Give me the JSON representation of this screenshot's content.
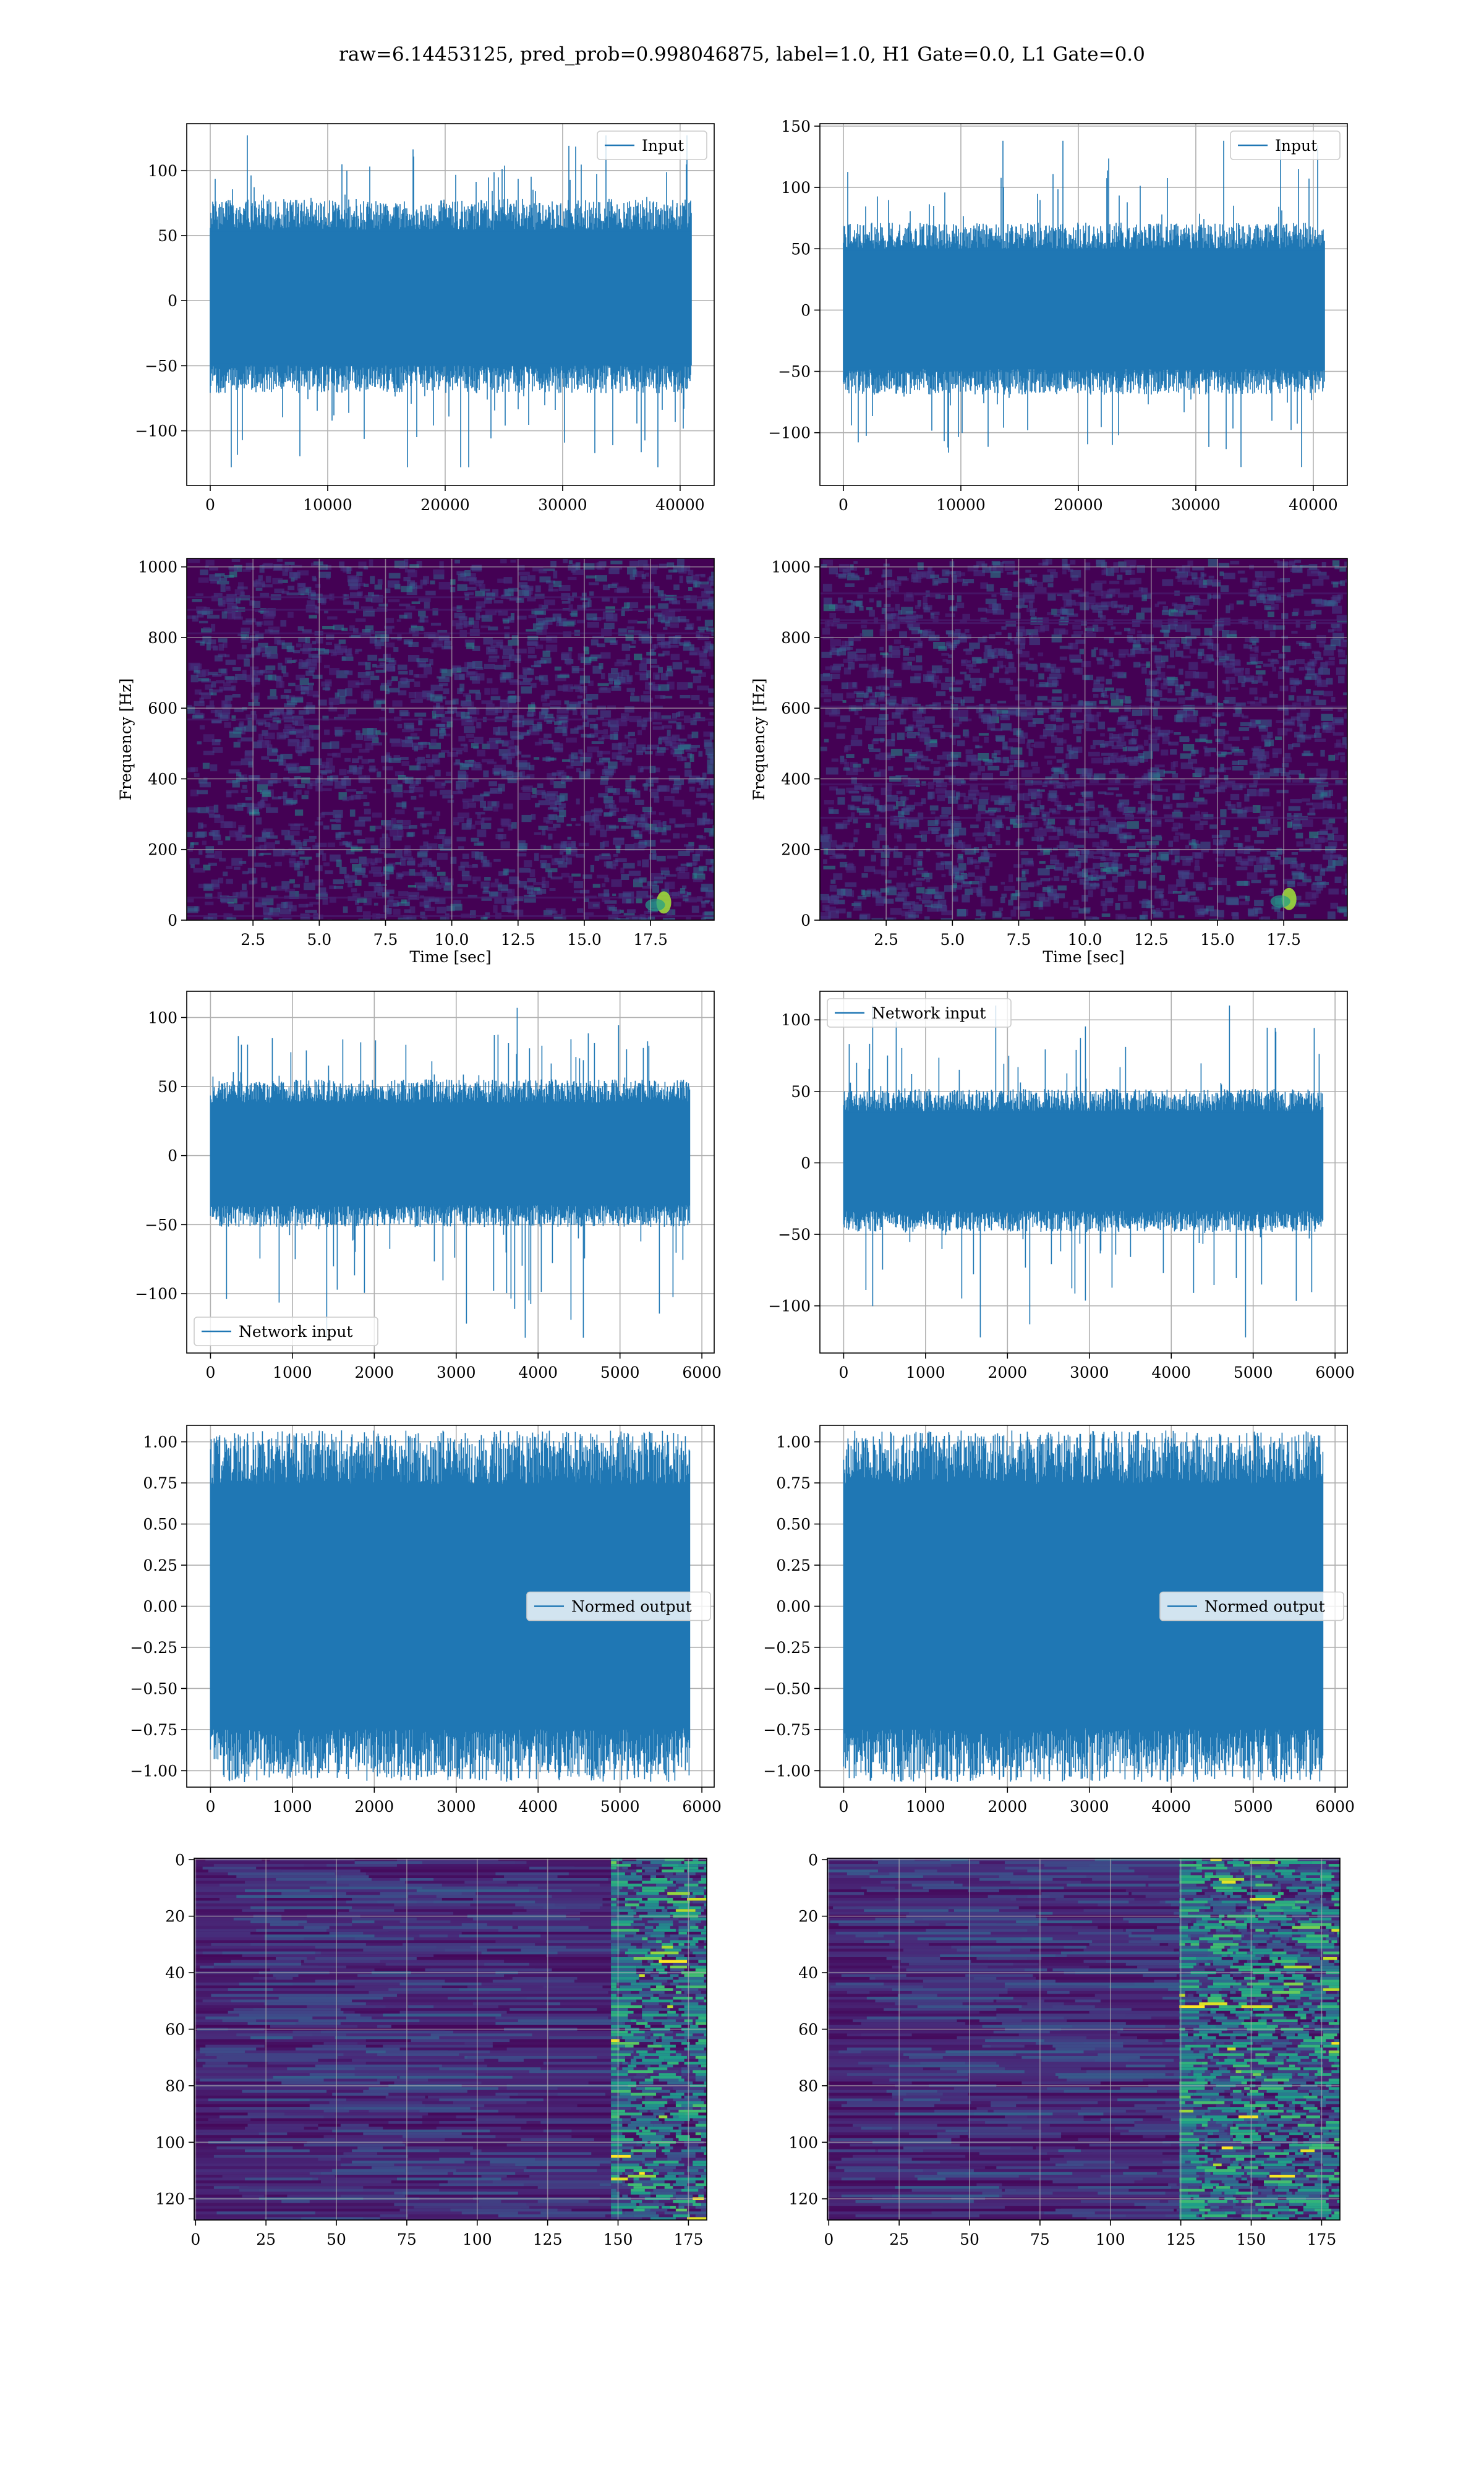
{
  "figure": {
    "suptitle": "raw=6.14453125, pred_prob=0.998046875, label=1.0, H1 Gate=0.0, L1 Gate=0.0",
    "colors": {
      "line": "#1f77b4",
      "grid": "#b0b0b0",
      "axes": "#000000",
      "viridis_dark": "#440154"
    }
  },
  "chart_data": [
    {
      "id": "h1-input",
      "type": "line",
      "legend": [
        "Input"
      ],
      "legend_loc": "upper-right",
      "xlim": [
        -2000,
        42900
      ],
      "ylim": [
        -142,
        136
      ],
      "xticks": [
        0,
        10000,
        20000,
        30000,
        40000
      ],
      "yticks": [
        -100,
        -50,
        0,
        50,
        100
      ],
      "signal": {
        "n": 40960,
        "band": [
          -62,
          68
        ],
        "extremes": [
          -128,
          127
        ]
      }
    },
    {
      "id": "l1-input",
      "type": "line",
      "legend": [
        "Input"
      ],
      "legend_loc": "upper-right",
      "xlim": [
        -2000,
        42900
      ],
      "ylim": [
        -143,
        152
      ],
      "xticks": [
        0,
        10000,
        20000,
        30000,
        40000
      ],
      "yticks": [
        -100,
        -50,
        0,
        50,
        100,
        150
      ],
      "signal": {
        "n": 40960,
        "band": [
          -60,
          62
        ],
        "extremes": [
          -128,
          138
        ]
      }
    },
    {
      "id": "h1-spectrogram",
      "type": "heatmap",
      "xlabel": "Time [sec]",
      "ylabel": "Frequency [Hz]",
      "xlim": [
        0,
        19.9
      ],
      "ylim": [
        0,
        1024
      ],
      "xticks": [
        2.5,
        5.0,
        7.5,
        10.0,
        12.5,
        15.0,
        17.5
      ],
      "yticks": [
        0,
        200,
        400,
        600,
        800,
        1000
      ],
      "colormap": "viridis",
      "chirp": {
        "t_end": 18.0,
        "f_end": 50
      }
    },
    {
      "id": "l1-spectrogram",
      "type": "heatmap",
      "xlabel": "Time [sec]",
      "ylabel": "Frequency [Hz]",
      "xlim": [
        0,
        19.9
      ],
      "ylim": [
        0,
        1024
      ],
      "xticks": [
        2.5,
        5.0,
        7.5,
        10.0,
        12.5,
        15.0,
        17.5
      ],
      "yticks": [
        0,
        200,
        400,
        600,
        800,
        1000
      ],
      "colormap": "viridis",
      "chirp": {
        "t_end": 17.7,
        "f_end": 60
      }
    },
    {
      "id": "h1-network-input",
      "type": "line",
      "legend": [
        "Network input"
      ],
      "legend_loc": "lower-left",
      "xlim": [
        -290,
        6150
      ],
      "ylim": [
        -143,
        119
      ],
      "xticks": [
        0,
        1000,
        2000,
        3000,
        4000,
        5000,
        6000
      ],
      "yticks": [
        -100,
        -50,
        0,
        50,
        100
      ],
      "signal": {
        "n": 5848,
        "band": [
          -45,
          48
        ],
        "extremes": [
          -132,
          107
        ]
      }
    },
    {
      "id": "l1-network-input",
      "type": "line",
      "legend": [
        "Network input"
      ],
      "legend_loc": "upper-left",
      "xlim": [
        -290,
        6150
      ],
      "ylim": [
        -133,
        120
      ],
      "xticks": [
        0,
        1000,
        2000,
        3000,
        4000,
        5000,
        6000
      ],
      "yticks": [
        -100,
        -50,
        0,
        50,
        100
      ],
      "signal": {
        "n": 5848,
        "band": [
          -42,
          45
        ],
        "extremes": [
          -122,
          110
        ]
      }
    },
    {
      "id": "h1-normed-output",
      "type": "line",
      "legend": [
        "Normed output"
      ],
      "legend_loc": "center-right",
      "xlim": [
        -290,
        6150
      ],
      "ylim": [
        -1.1,
        1.1
      ],
      "xticks": [
        0,
        1000,
        2000,
        3000,
        4000,
        5000,
        6000
      ],
      "yticks": [
        -1.0,
        -0.75,
        -0.5,
        -0.25,
        0.0,
        0.25,
        0.5,
        0.75,
        1.0
      ],
      "signal": {
        "n": 5848,
        "band": [
          -0.93,
          0.93
        ],
        "extremes": [
          -1.0,
          1.0
        ]
      }
    },
    {
      "id": "l1-normed-output",
      "type": "line",
      "legend": [
        "Normed output"
      ],
      "legend_loc": "center-right",
      "xlim": [
        -290,
        6150
      ],
      "ylim": [
        -1.1,
        1.1
      ],
      "xticks": [
        0,
        1000,
        2000,
        3000,
        4000,
        5000,
        6000
      ],
      "yticks": [
        -1.0,
        -0.75,
        -0.5,
        -0.25,
        0.0,
        0.25,
        0.5,
        0.75,
        1.0
      ],
      "signal": {
        "n": 5848,
        "band": [
          -0.93,
          0.93
        ],
        "extremes": [
          -1.0,
          1.0
        ]
      }
    },
    {
      "id": "h1-feature-map",
      "type": "heatmap",
      "colormap": "viridis",
      "xlim": [
        -0.5,
        181.5
      ],
      "ylim": [
        127.5,
        -0.5
      ],
      "xticks": [
        0,
        25,
        50,
        75,
        100,
        125,
        150,
        175
      ],
      "yticks": [
        0,
        20,
        40,
        60,
        80,
        100,
        120
      ],
      "grid": {
        "cols": 182,
        "rows": 128
      },
      "active_from_col": 148
    },
    {
      "id": "l1-feature-map",
      "type": "heatmap",
      "colormap": "viridis",
      "xlim": [
        -0.5,
        181.5
      ],
      "ylim": [
        127.5,
        -0.5
      ],
      "xticks": [
        0,
        25,
        50,
        75,
        100,
        125,
        150,
        175
      ],
      "yticks": [
        0,
        20,
        40,
        60,
        80,
        100,
        120
      ],
      "grid": {
        "cols": 182,
        "rows": 128
      },
      "active_from_col": 125
    }
  ]
}
